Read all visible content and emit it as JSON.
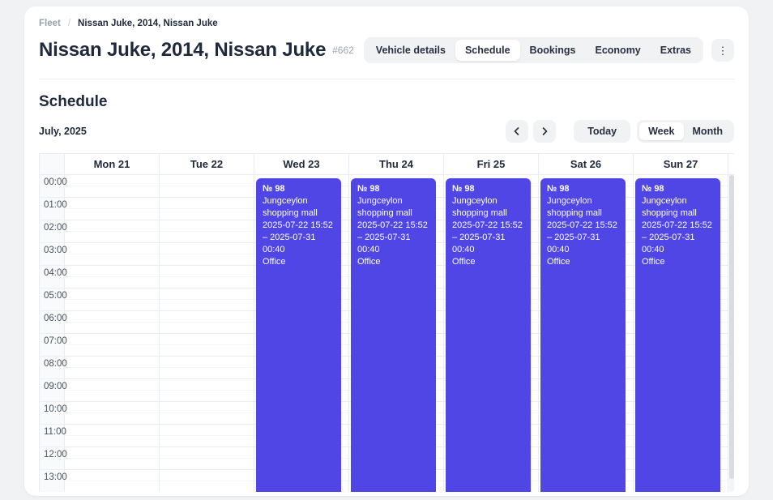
{
  "breadcrumb": {
    "root": "Fleet",
    "separator": "/",
    "current": "Nissan Juke, 2014, Nissan Juke"
  },
  "header": {
    "title": "Nissan Juke, 2014, Nissan Juke",
    "vehicle_id": "#662",
    "tabs": [
      {
        "label": "Vehicle details",
        "active": false
      },
      {
        "label": "Schedule",
        "active": true
      },
      {
        "label": "Bookings",
        "active": false
      },
      {
        "label": "Economy",
        "active": false
      },
      {
        "label": "Extras",
        "active": false
      }
    ],
    "menu_icon": "kebab-vertical"
  },
  "schedule": {
    "heading": "Schedule",
    "month_label": "July, 2025",
    "today_label": "Today",
    "view_toggle": {
      "week": "Week",
      "month": "Month",
      "active": "Week"
    },
    "nav_icons": {
      "prev": "chevron-left",
      "next": "chevron-right"
    }
  },
  "calendar": {
    "view": "week",
    "days": [
      {
        "label": "Mon 21",
        "has_event": false
      },
      {
        "label": "Tue 22",
        "has_event": false
      },
      {
        "label": "Wed 23",
        "has_event": true
      },
      {
        "label": "Thu 24",
        "has_event": true
      },
      {
        "label": "Fri 25",
        "has_event": true
      },
      {
        "label": "Sat 26",
        "has_event": true
      },
      {
        "label": "Sun 27",
        "has_event": true
      }
    ],
    "times": [
      "00:00",
      "01:00",
      "02:00",
      "03:00",
      "04:00",
      "05:00",
      "06:00",
      "07:00",
      "08:00",
      "09:00",
      "10:00",
      "11:00",
      "12:00",
      "13:00"
    ],
    "event": {
      "number": "№ 98",
      "location": "Jungceylon shopping mall",
      "range": "2025-07-22 15:52 – 2025-07-31 00:40",
      "note": "Office",
      "color": "#4f46e5"
    }
  }
}
